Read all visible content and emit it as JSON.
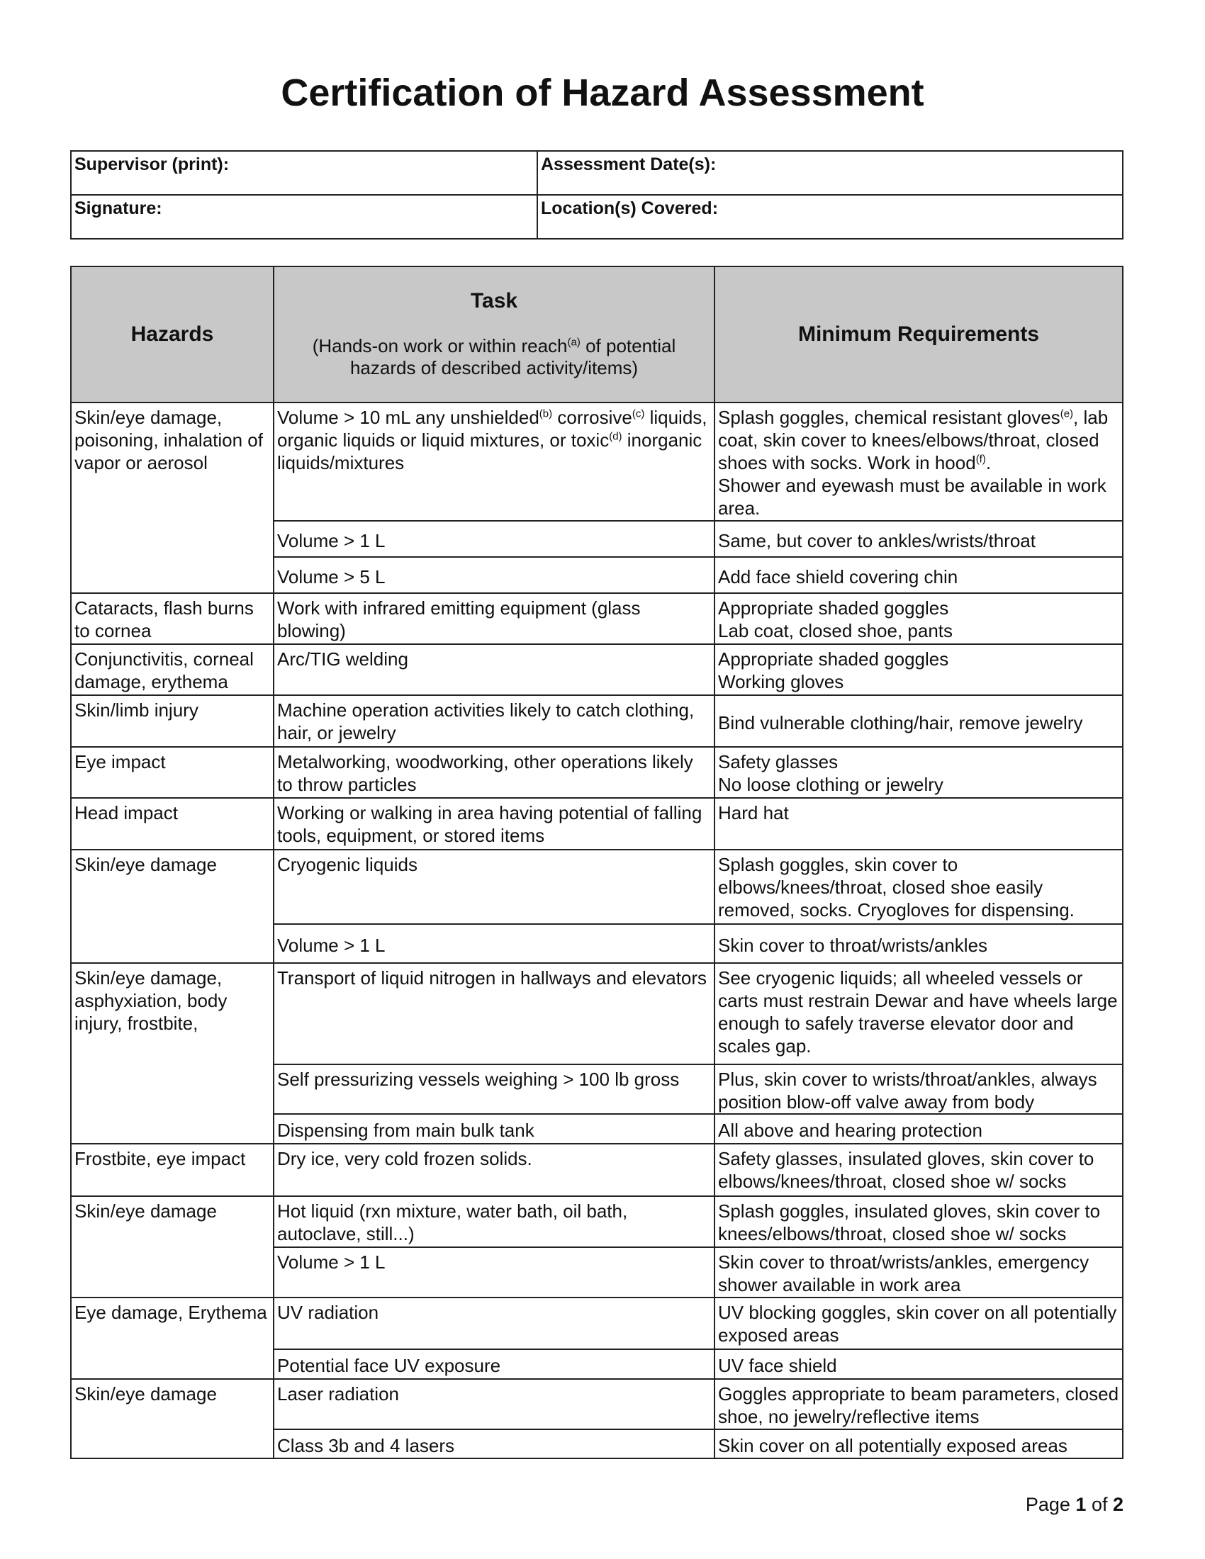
{
  "title": "Certification of Hazard Assessment",
  "info": {
    "supervisor_label": "Supervisor (print):",
    "date_label": "Assessment Date(s):",
    "signature_label": "Signature:",
    "location_label": "Location(s) Covered:"
  },
  "table": {
    "headers": {
      "hazards": "Hazards",
      "task": "Task",
      "task_sub_1": "(Hands-on work or within reach",
      "task_sub_sup": "(a)",
      "task_sub_2": " of potential hazards of described activity/items)",
      "requirements": "Minimum Requirements"
    },
    "groups": [
      {
        "hazard": "Skin/eye damage, poisoning, inhalation of vapor or aerosol",
        "rows": [
          {
            "task": [
              {
                "t": "Volume > 10 mL any unshielded"
              },
              {
                "sup": "(b)"
              },
              {
                "t": " corrosive"
              },
              {
                "sup": "(c)"
              },
              {
                "t": " liquids, organic liquids or liquid mixtures, or toxic"
              },
              {
                "sup": "(d)"
              },
              {
                "t": " inorganic liquids/mixtures"
              }
            ],
            "req": [
              {
                "t": "Splash goggles, chemical resistant gloves"
              },
              {
                "sup": "(e)"
              },
              {
                "t": ", lab coat, skin cover to knees/elbows/throat, closed shoes with socks.  Work in hood"
              },
              {
                "sup": "(f)"
              },
              {
                "t": ".\nShower and eyewash must be available in work area."
              }
            ]
          },
          {
            "task": [
              {
                "t": "Volume > 1 L"
              }
            ],
            "req": [
              {
                "t": "Same, but cover to ankles/wrists/throat"
              }
            ]
          },
          {
            "task": [
              {
                "t": "Volume > 5 L"
              }
            ],
            "req": [
              {
                "t": "Add face shield covering chin"
              }
            ]
          }
        ]
      },
      {
        "hazard": "Cataracts, flash burns to cornea",
        "rows": [
          {
            "task": [
              {
                "t": "Work with infrared emitting equipment (glass blowing)"
              }
            ],
            "req": [
              {
                "t": "Appropriate shaded goggles\nLab coat, closed shoe, pants"
              }
            ]
          }
        ]
      },
      {
        "hazard": "Conjunctivitis, corneal damage, erythema",
        "rows": [
          {
            "task": [
              {
                "t": "Arc/TIG welding"
              }
            ],
            "req": [
              {
                "t": "Appropriate shaded goggles\nWorking gloves"
              }
            ]
          }
        ]
      },
      {
        "hazard": "Skin/limb injury",
        "rows": [
          {
            "task": [
              {
                "t": "Machine operation activities likely to catch clothing, hair, or jewelry"
              }
            ],
            "req": [
              {
                "t": "Bind vulnerable clothing/hair, remove jewelry"
              }
            ]
          }
        ]
      },
      {
        "hazard": "Eye impact",
        "rows": [
          {
            "task": [
              {
                "t": "Metalworking, woodworking, other operations likely to throw particles"
              }
            ],
            "req": [
              {
                "t": "Safety glasses\nNo loose clothing or jewelry"
              }
            ]
          }
        ]
      },
      {
        "hazard": "Head impact",
        "rows": [
          {
            "task": [
              {
                "t": "Working or walking in area having potential of falling tools, equipment, or stored items"
              }
            ],
            "req": [
              {
                "t": "Hard hat"
              }
            ]
          }
        ]
      },
      {
        "hazard": "Skin/eye damage",
        "rows": [
          {
            "task": [
              {
                "t": "Cryogenic liquids"
              }
            ],
            "req": [
              {
                "t": "Splash goggles, skin cover to elbows/knees/throat, closed shoe easily removed, socks.  Cryogloves for dispensing."
              }
            ]
          },
          {
            "task": [
              {
                "t": "Volume > 1 L"
              }
            ],
            "req": [
              {
                "t": "Skin cover to throat/wrists/ankles"
              }
            ]
          }
        ]
      },
      {
        "hazard": "Skin/eye damage, asphyxiation, body injury, frostbite,",
        "rows": [
          {
            "task": [
              {
                "t": "Transport of liquid nitrogen in hallways and elevators"
              }
            ],
            "req": [
              {
                "t": "See cryogenic liquids; all wheeled vessels or carts must restrain Dewar and have wheels large enough to safely traverse elevator door and scales gap."
              }
            ]
          },
          {
            "task": [
              {
                "t": "Self pressurizing vessels weighing > 100 lb gross"
              }
            ],
            "req": [
              {
                "t": "Plus, skin cover to wrists/throat/ankles, always position blow-off valve away from body"
              }
            ]
          },
          {
            "task": [
              {
                "t": "Dispensing from main bulk tank"
              }
            ],
            "req": [
              {
                "t": "All above and hearing protection"
              }
            ]
          }
        ]
      },
      {
        "hazard": "Frostbite, eye impact",
        "rows": [
          {
            "task": [
              {
                "t": "Dry ice, very cold frozen solids."
              }
            ],
            "req": [
              {
                "t": "Safety glasses, insulated gloves, skin cover to elbows/knees/throat, closed shoe w/ socks"
              }
            ]
          }
        ]
      },
      {
        "hazard": "Skin/eye damage",
        "rows": [
          {
            "task": [
              {
                "t": "Hot liquid (rxn mixture, water bath, oil bath, autoclave, still...)"
              }
            ],
            "req": [
              {
                "t": "Splash goggles, insulated gloves, skin cover to knees/elbows/throat, closed shoe w/ socks"
              }
            ]
          },
          {
            "task": [
              {
                "t": "Volume > 1 L"
              }
            ],
            "req": [
              {
                "t": "Skin cover to throat/wrists/ankles, emergency shower available in work area"
              }
            ]
          }
        ]
      },
      {
        "hazard": "Eye damage, Erythema",
        "rows": [
          {
            "task": [
              {
                "t": "UV radiation"
              }
            ],
            "req": [
              {
                "t": "UV blocking goggles, skin cover on all potentially exposed areas"
              }
            ]
          },
          {
            "task": [
              {
                "t": "Potential face UV exposure"
              }
            ],
            "req": [
              {
                "t": "UV face shield"
              }
            ]
          }
        ]
      },
      {
        "hazard": "Skin/eye damage",
        "rows": [
          {
            "task": [
              {
                "t": "Laser radiation"
              }
            ],
            "req": [
              {
                "t": "Goggles appropriate to beam parameters, closed shoe, no jewelry/reflective items"
              }
            ]
          },
          {
            "task": [
              {
                "t": "Class 3b and 4 lasers"
              }
            ],
            "req": [
              {
                "t": "Skin cover on all potentially exposed areas"
              }
            ]
          }
        ]
      }
    ]
  },
  "footer": {
    "page_prefix": "Page ",
    "page": "1",
    "of_label": " of ",
    "total": "2"
  }
}
